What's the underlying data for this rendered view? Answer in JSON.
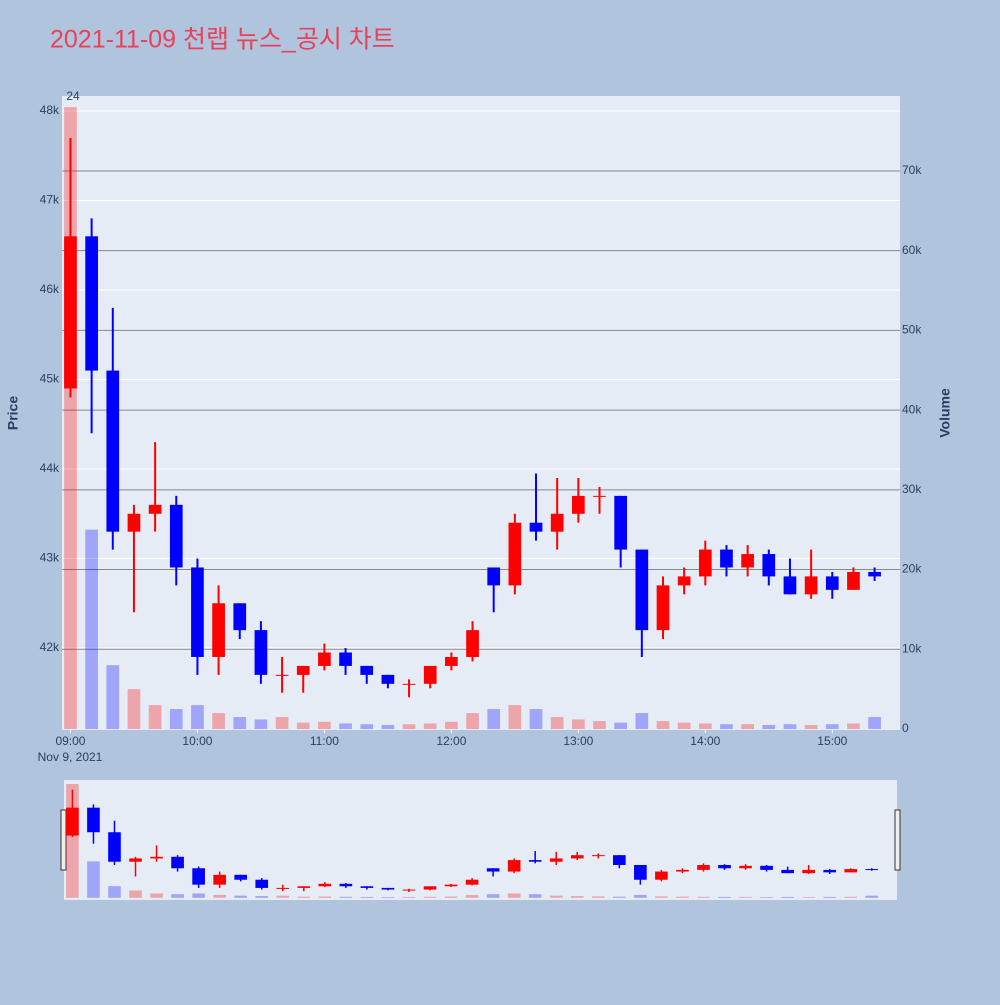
{
  "chart_data": {
    "type": "candlestick",
    "title": "2021-11-09 천랩 뉴스_공시 차트",
    "annotation": "24",
    "x_date_label": "Nov 9, 2021",
    "y_label": "Price",
    "y2_label": "Volume",
    "increasing_color": "#ff0000",
    "decreasing_color": "#0000ff",
    "x": [
      "2021-11-09 09:00",
      "2021-11-09 09:10",
      "2021-11-09 09:20",
      "2021-11-09 09:30",
      "2021-11-09 09:40",
      "2021-11-09 09:50",
      "2021-11-09 10:00",
      "2021-11-09 10:10",
      "2021-11-09 10:20",
      "2021-11-09 10:30",
      "2021-11-09 10:40",
      "2021-11-09 10:50",
      "2021-11-09 11:00",
      "2021-11-09 11:10",
      "2021-11-09 11:20",
      "2021-11-09 11:30",
      "2021-11-09 11:40",
      "2021-11-09 11:50",
      "2021-11-09 12:00",
      "2021-11-09 12:10",
      "2021-11-09 12:20",
      "2021-11-09 12:30",
      "2021-11-09 12:40",
      "2021-11-09 12:50",
      "2021-11-09 13:00",
      "2021-11-09 13:10",
      "2021-11-09 13:20",
      "2021-11-09 13:30",
      "2021-11-09 13:40",
      "2021-11-09 13:50",
      "2021-11-09 14:00",
      "2021-11-09 14:10",
      "2021-11-09 14:20",
      "2021-11-09 14:30",
      "2021-11-09 14:40",
      "2021-11-09 14:50",
      "2021-11-09 15:00",
      "2021-11-09 15:10",
      "2021-11-09 15:20"
    ],
    "open": [
      44900,
      46600,
      45100,
      43300,
      43500,
      43600,
      42900,
      41900,
      42500,
      42200,
      41700,
      41700,
      41800,
      41950,
      41800,
      41700,
      41600,
      41600,
      41800,
      41900,
      42900,
      42700,
      43400,
      43300,
      43500,
      43700,
      43700,
      43100,
      42200,
      42700,
      42800,
      43100,
      42900,
      43050,
      42800,
      42600,
      42800,
      42650,
      42850
    ],
    "high": [
      47700,
      46800,
      45800,
      43600,
      44300,
      43700,
      43000,
      42700,
      42500,
      42300,
      41900,
      41800,
      42050,
      42000,
      41800,
      41700,
      41650,
      41800,
      41950,
      42300,
      42900,
      43500,
      43950,
      43900,
      43900,
      43800,
      43700,
      43100,
      42800,
      42900,
      43200,
      43150,
      43150,
      43100,
      43000,
      43100,
      42850,
      42900,
      42900
    ],
    "low": [
      44800,
      44400,
      43100,
      42400,
      43300,
      42700,
      41700,
      41700,
      42100,
      41600,
      41500,
      41500,
      41750,
      41700,
      41600,
      41550,
      41450,
      41550,
      41750,
      41850,
      42400,
      42600,
      43200,
      43100,
      43400,
      43500,
      42900,
      41900,
      42100,
      42600,
      42700,
      42800,
      42800,
      42700,
      42600,
      42550,
      42550,
      42650,
      42750
    ],
    "close": [
      46600,
      45100,
      43300,
      43500,
      43600,
      42900,
      41900,
      42500,
      42200,
      41700,
      41700,
      41800,
      41950,
      41800,
      41700,
      41600,
      41600,
      41800,
      41900,
      42200,
      42700,
      43400,
      43300,
      43500,
      43700,
      43700,
      43100,
      42200,
      42700,
      42800,
      43100,
      42900,
      43050,
      42800,
      42600,
      42800,
      42650,
      42850,
      42800
    ],
    "volume": [
      78000,
      25000,
      8000,
      5000,
      3000,
      2500,
      3000,
      2000,
      1500,
      1200,
      1500,
      800,
      900,
      700,
      600,
      500,
      600,
      700,
      900,
      2000,
      2500,
      3000,
      2500,
      1500,
      1200,
      1000,
      800,
      2000,
      1000,
      800,
      700,
      600,
      600,
      500,
      600,
      500,
      600,
      700,
      1500
    ],
    "xlim": [
      "2021-11-09 08:56",
      "2021-11-09 15:32"
    ],
    "xticks": [
      {
        "value": "2021-11-09 09:00",
        "label": "09:00"
      },
      {
        "value": "2021-11-09 10:00",
        "label": "10:00"
      },
      {
        "value": "2021-11-09 11:00",
        "label": "11:00"
      },
      {
        "value": "2021-11-09 12:00",
        "label": "12:00"
      },
      {
        "value": "2021-11-09 13:00",
        "label": "13:00"
      },
      {
        "value": "2021-11-09 14:00",
        "label": "14:00"
      },
      {
        "value": "2021-11-09 15:00",
        "label": "15:00"
      }
    ],
    "ylim": [
      41084,
      48168
    ],
    "yticks": [
      {
        "value": 42000,
        "label": "42k"
      },
      {
        "value": 43000,
        "label": "43k"
      },
      {
        "value": 44000,
        "label": "44k"
      },
      {
        "value": 45000,
        "label": "45k"
      },
      {
        "value": 46000,
        "label": "46k"
      },
      {
        "value": 47000,
        "label": "47k"
      },
      {
        "value": 48000,
        "label": "48k"
      }
    ],
    "y2lim": [
      -125,
      79400
    ],
    "y2ticks": [
      0,
      {
        "value": 10000,
        "label": "10k"
      },
      {
        "value": 20000,
        "label": "20k"
      },
      {
        "value": 30000,
        "label": "30k"
      },
      {
        "value": 40000,
        "label": "40k"
      },
      {
        "value": 50000,
        "label": "50k"
      },
      {
        "value": 60000,
        "label": "60k"
      },
      {
        "value": 70000,
        "label": "70k"
      }
    ]
  }
}
